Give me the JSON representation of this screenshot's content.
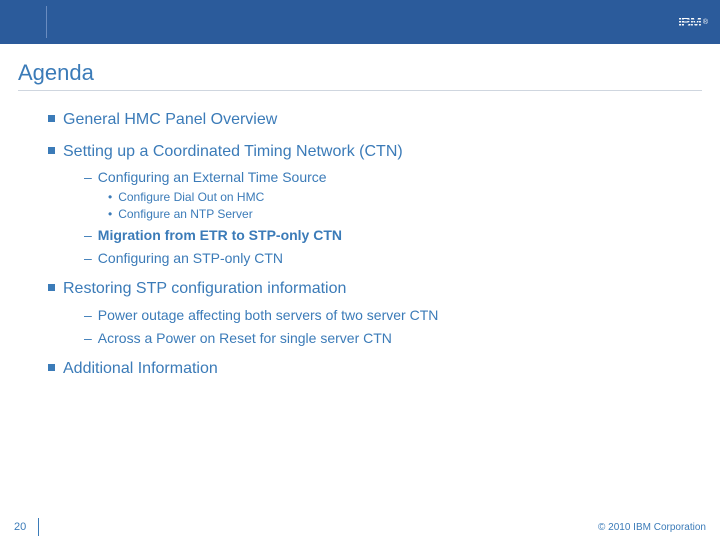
{
  "colors": {
    "header_bg": "#2b5b9b",
    "accent": "#3b7bb8",
    "underline": "#cfd6df",
    "body_bg": "#ffffff",
    "header_sep": "#6a8cc0"
  },
  "typography": {
    "title_fontsize": 22,
    "lvl1_fontsize": 16,
    "lvl2_fontsize": 14,
    "lvl3_fontsize": 12,
    "footer_fontsize": 11
  },
  "header": {
    "logo_text": "IBM",
    "registered": "®"
  },
  "title": "Agenda",
  "agenda": [
    {
      "label": "General HMC Panel Overview",
      "children": []
    },
    {
      "label": "Setting up a Coordinated Timing Network (CTN)",
      "children": [
        {
          "label": "Configuring an External Time Source",
          "bold": false,
          "children": [
            {
              "label": "Configure Dial Out on HMC"
            },
            {
              "label": "Configure an NTP Server"
            }
          ]
        },
        {
          "label": "Migration from ETR to STP-only CTN",
          "bold": true,
          "children": []
        },
        {
          "label": "Configuring an STP-only CTN",
          "bold": false,
          "children": []
        }
      ]
    },
    {
      "label": "Restoring STP configuration information",
      "children": [
        {
          "label": "Power outage affecting both servers of two server CTN",
          "bold": false,
          "children": []
        },
        {
          "label": "Across a Power on Reset for single server CTN",
          "bold": false,
          "children": []
        }
      ]
    },
    {
      "label": "Additional Information",
      "children": []
    }
  ],
  "footer": {
    "page": "20",
    "copyright": "© 2010 IBM Corporation"
  }
}
